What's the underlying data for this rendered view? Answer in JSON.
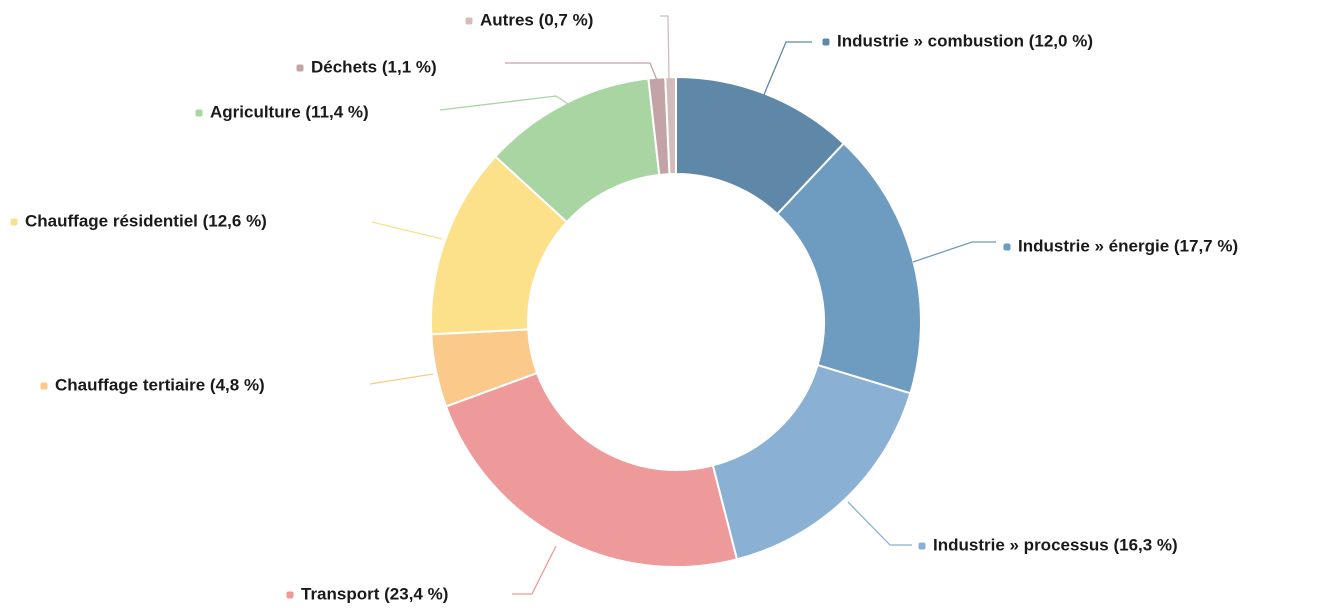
{
  "chart_data": {
    "type": "donut",
    "categories": [
      "Industrie » combustion (12,0 %)",
      "Industrie » énergie (17,7 %)",
      "Industrie » processus (16,3 %)",
      "Transport (23,4 %)",
      "Chauffage tertiaire (4,8 %)",
      "Chauffage résidentiel (12,6 %)",
      "Agriculture (11,4 %)",
      "Déchets (1,1 %)",
      "Autres (0,7 %)"
    ],
    "values": [
      12.0,
      17.7,
      16.3,
      23.4,
      4.8,
      12.6,
      11.4,
      1.1,
      0.7
    ],
    "colors": [
      "#5f87a8",
      "#6e9bc0",
      "#8ab0d4",
      "#ee9a9a",
      "#fbc98a",
      "#fde08a",
      "#a8d5a2",
      "#c4a3a6",
      "#d4bcbd"
    ]
  }
}
